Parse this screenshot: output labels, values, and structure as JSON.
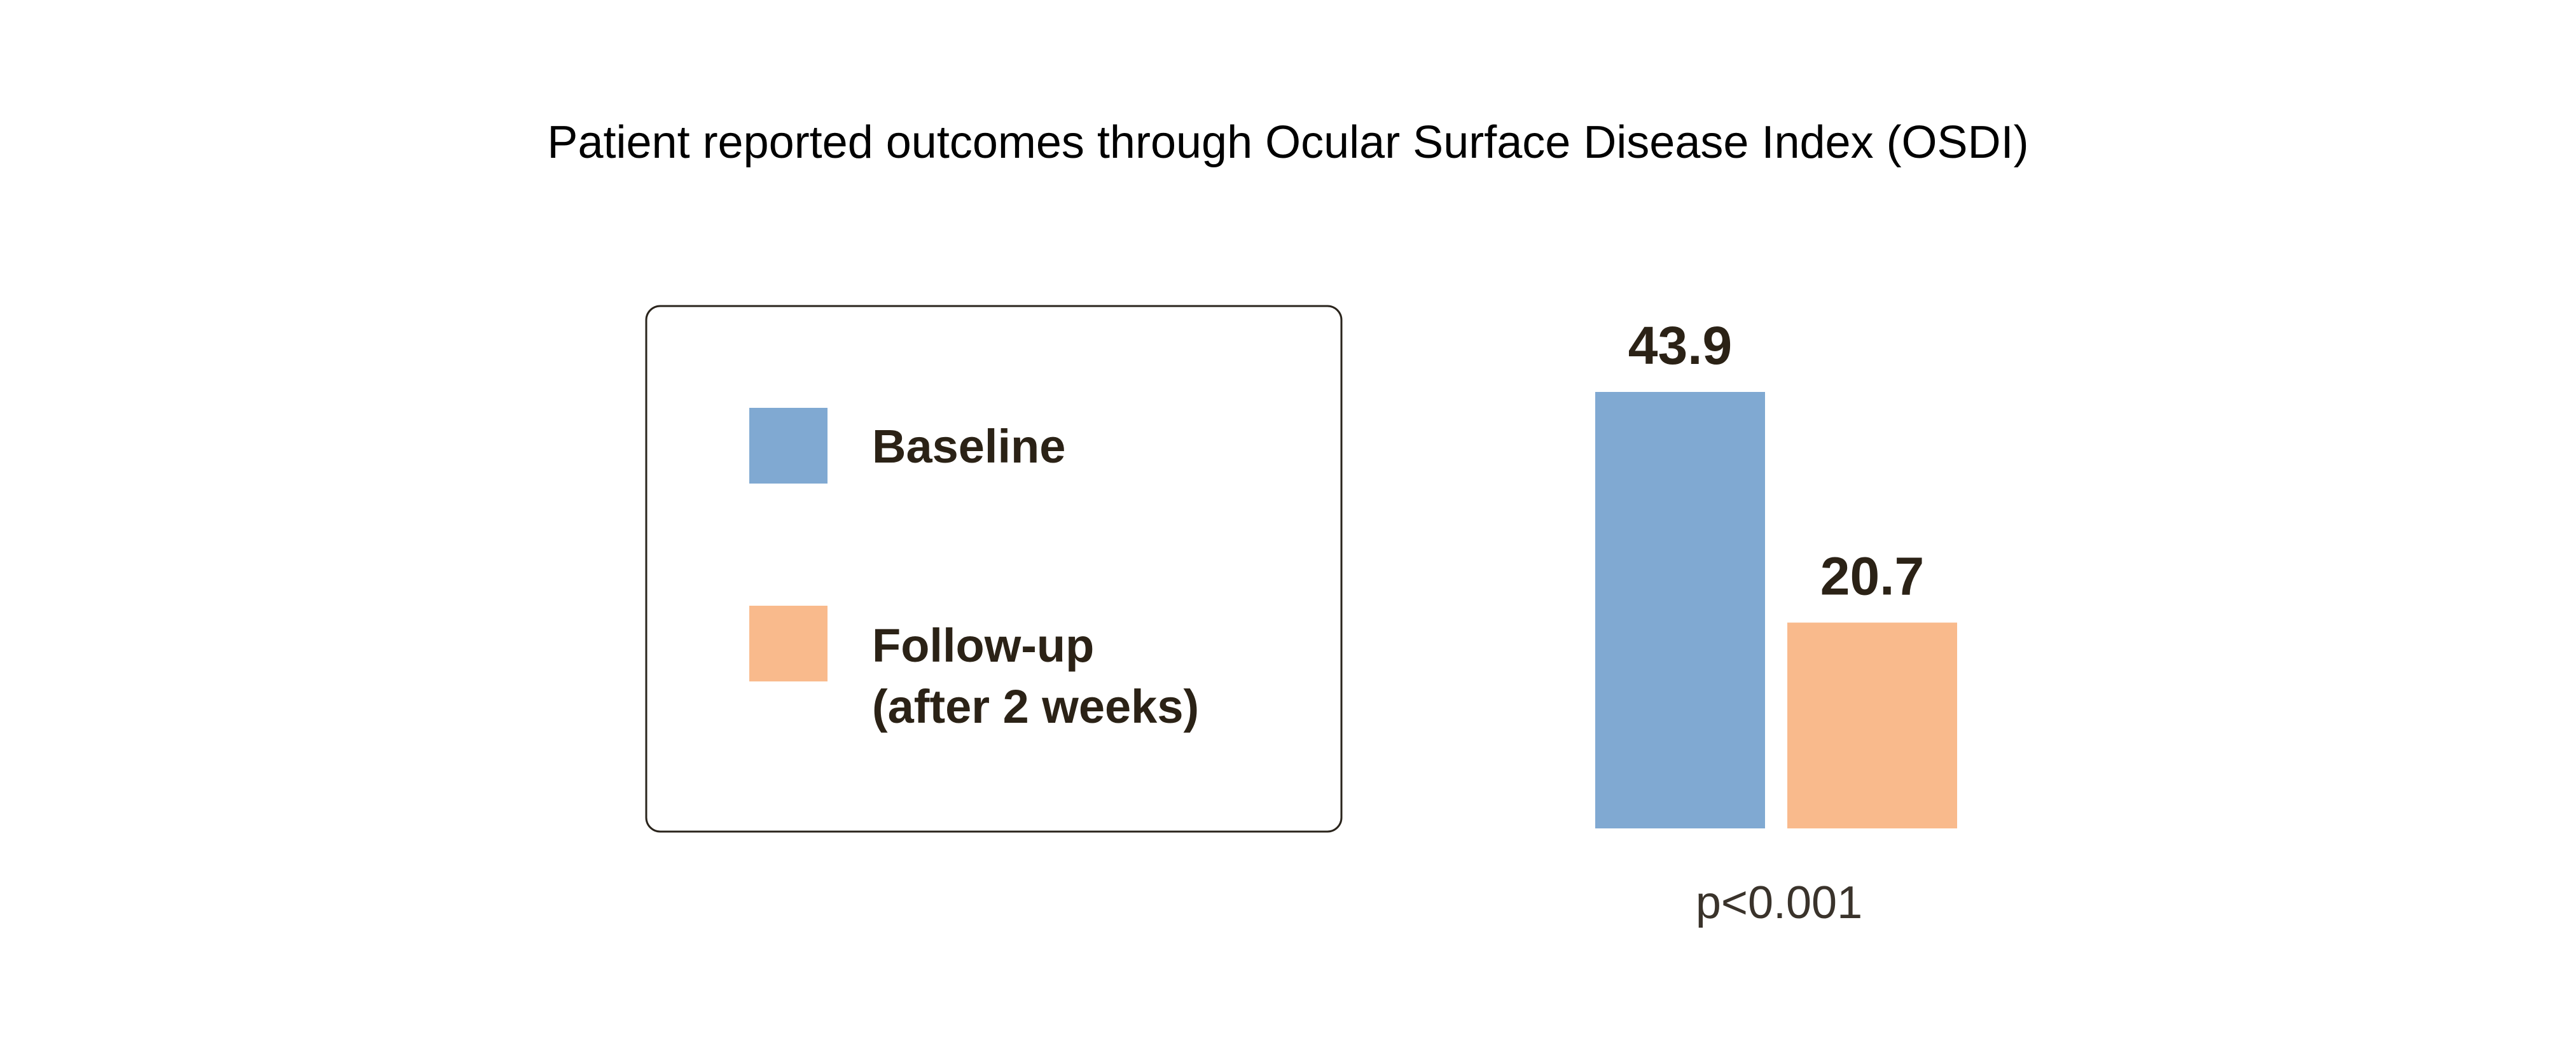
{
  "chart_data": {
    "type": "bar",
    "title": "Patient reported outcomes through Ocular Surface Disease Index (OSDI)",
    "categories": [
      "Baseline",
      "Follow-up (after 2 weeks)"
    ],
    "values": [
      43.9,
      20.7
    ],
    "value_labels": [
      "43.9",
      "20.7"
    ],
    "ylim": [
      0,
      43.9
    ],
    "grid": false,
    "legend": {
      "placement": "left",
      "entries": [
        {
          "label_lines": [
            "Baseline"
          ],
          "color": "#80a9d2"
        },
        {
          "label_lines": [
            "Follow-up",
            "(after 2 weeks)"
          ],
          "color": "#f9ba8c"
        }
      ]
    },
    "annotation": "p<0.001"
  }
}
